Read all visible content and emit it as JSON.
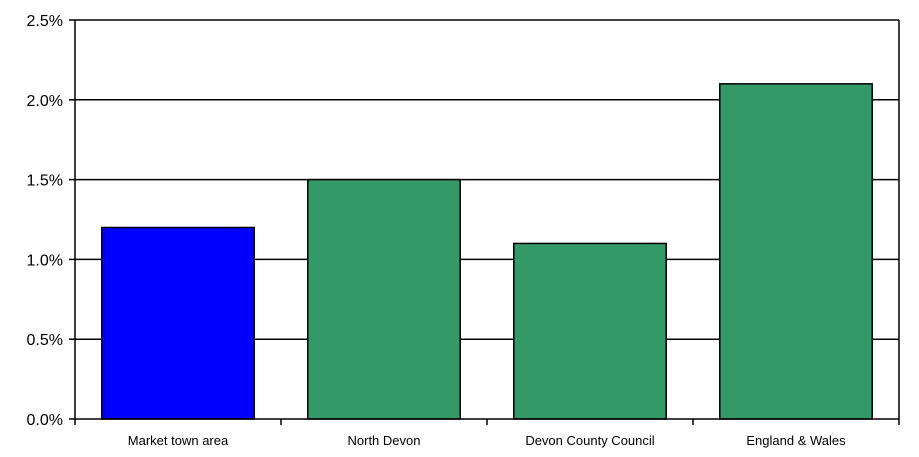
{
  "chart_data": {
    "type": "bar",
    "categories": [
      "Market town area",
      "North Devon",
      "Devon County Council",
      "England & Wales"
    ],
    "values": [
      0.012,
      0.015,
      0.011,
      0.021
    ],
    "bar_colors": [
      "#0000ff",
      "#339966",
      "#339966",
      "#339966"
    ],
    "title": "",
    "xlabel": "",
    "ylabel": "",
    "ylim": [
      0,
      0.025
    ],
    "yticks": [
      "0.0%",
      "0.5%",
      "1.0%",
      "1.5%",
      "2.0%",
      "2.5%"
    ],
    "grid": true
  }
}
